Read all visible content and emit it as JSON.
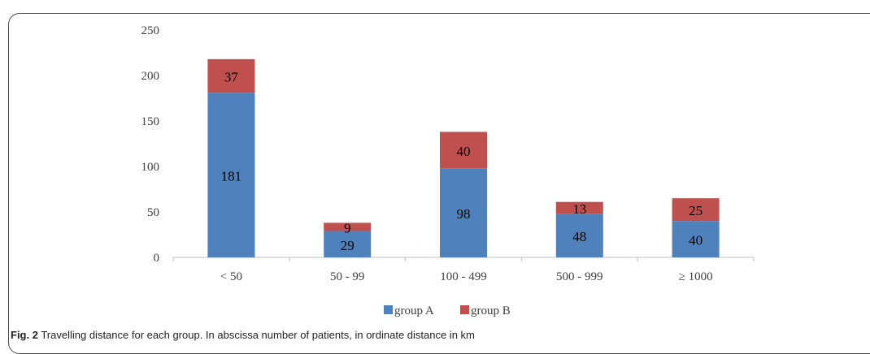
{
  "chart_data": {
    "type": "bar",
    "stacked": true,
    "categories": [
      "< 50",
      "50 - 99",
      "100 - 499",
      "500 - 999",
      "≥ 1000"
    ],
    "series": [
      {
        "name": "group A",
        "values": [
          181,
          29,
          98,
          48,
          40
        ],
        "color": "#4f81bd"
      },
      {
        "name": "group B",
        "values": [
          37,
          9,
          40,
          13,
          25
        ],
        "color": "#c0504d"
      }
    ],
    "ylim": [
      0,
      250
    ],
    "yticks": [
      0,
      50,
      100,
      150,
      200,
      250
    ],
    "grid": false,
    "legend": "bottom-center"
  },
  "caption": {
    "label": "Fig. 2",
    "text": "Travelling distance for each group. In abscissa number of patients, in ordinate distance in km"
  }
}
